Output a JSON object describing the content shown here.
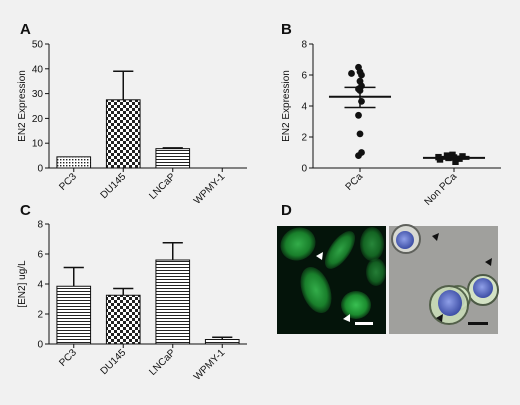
{
  "panel_labels": {
    "A": "A",
    "B": "B",
    "C": "C",
    "D": "D"
  },
  "colors": {
    "background": "#f1f1f1",
    "bar_fill": "#ffffff",
    "ink": "#111111",
    "fluor_green": "#2fbf45",
    "nucleus_blue": "#5a6fc8"
  },
  "chart_data": [
    {
      "panel": "A",
      "type": "bar",
      "ylabel": "EN2 Expression",
      "xlabel": "",
      "ylim": [
        0,
        50
      ],
      "yticks": [
        0,
        10,
        20,
        30,
        40,
        50
      ],
      "categories": [
        "PC3",
        "DU145",
        "LNCaP",
        "WPMY-1"
      ],
      "values": [
        4.5,
        27.5,
        7.8,
        0
      ],
      "errors": [
        0,
        11.5,
        0.3,
        0
      ],
      "patterns": [
        "dots",
        "checker",
        "hlines",
        "none"
      ]
    },
    {
      "panel": "B",
      "type": "scatter",
      "ylabel": "EN2 Expression",
      "xlabel": "",
      "ylim": [
        0,
        8
      ],
      "yticks": [
        0,
        2,
        4,
        6,
        8
      ],
      "categories": [
        "PCa",
        "Non PCa"
      ],
      "series": [
        {
          "category": "PCa",
          "marker": "circle",
          "values": [
            6.5,
            6.2,
            6.0,
            6.1,
            5.6,
            5.3,
            5.1,
            5.0,
            4.3,
            3.4,
            2.2,
            1.0,
            0.8
          ],
          "mean": 4.6,
          "sem_low": 3.9,
          "sem_high": 5.2
        },
        {
          "category": "Non PCa",
          "marker": "square",
          "values": [
            0.85,
            0.8,
            0.75,
            0.7,
            0.68,
            0.65,
            0.6,
            0.55,
            0.4
          ],
          "mean": 0.65,
          "sem_low": 0.57,
          "sem_high": 0.73
        }
      ]
    },
    {
      "panel": "C",
      "type": "bar",
      "ylabel": "[EN2] ug/L",
      "xlabel": "",
      "ylim": [
        0,
        8
      ],
      "yticks": [
        0,
        2,
        4,
        6,
        8
      ],
      "categories": [
        "PC3",
        "DU145",
        "LNCaP",
        "WPMY-1"
      ],
      "values": [
        3.85,
        3.25,
        5.6,
        0.3
      ],
      "errors": [
        1.25,
        0.45,
        1.15,
        0.15
      ],
      "patterns": [
        "hlines",
        "checker",
        "hlines",
        "hlines"
      ]
    }
  ],
  "micrographs": {
    "left": {
      "stain": "fluorescence",
      "arrowheads": 2
    },
    "right": {
      "stain": "brightfield overlay",
      "arrowheads": 3
    }
  }
}
